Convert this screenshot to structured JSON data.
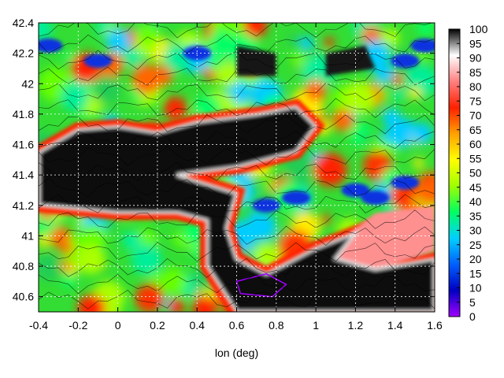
{
  "chart_data": {
    "type": "heatmap",
    "title": "",
    "xlabel": "lon (deg)",
    "ylabel": "",
    "xlim": [
      -0.4,
      1.6
    ],
    "ylim": [
      40.5,
      42.4
    ],
    "x_ticks": [
      "-0.4",
      "-0.2",
      "0",
      "0.2",
      "0.4",
      "0.6",
      "0.8",
      "1",
      "1.2",
      "1.4",
      "1.6"
    ],
    "y_ticks": [
      "40.6",
      "40.8",
      "41",
      "41.2",
      "41.4",
      "41.6",
      "41.8",
      "42",
      "42.2",
      "42.4"
    ],
    "colorbar": {
      "range": [
        0,
        100
      ],
      "ticks": [
        "0",
        "5",
        "10",
        "15",
        "20",
        "25",
        "30",
        "35",
        "40",
        "45",
        "50",
        "55",
        "60",
        "65",
        "70",
        "75",
        "80",
        "85",
        "90",
        "95",
        "100"
      ],
      "stops": [
        "#a000ff",
        "#0000c0",
        "#0060ff",
        "#00d0ff",
        "#00ff60",
        "#a0ff00",
        "#ffff00",
        "#ffa000",
        "#ff2000",
        "#ff8080",
        "#ffffff",
        "#000000"
      ]
    },
    "grid": true,
    "features": {
      "dark_plume": [
        [
          -0.4,
          41.55
        ],
        [
          -0.2,
          41.7
        ],
        [
          0.0,
          41.72
        ],
        [
          0.2,
          41.68
        ],
        [
          0.4,
          41.75
        ],
        [
          0.7,
          41.8
        ],
        [
          0.9,
          41.85
        ],
        [
          1.0,
          41.72
        ],
        [
          0.9,
          41.55
        ],
        [
          0.6,
          41.45
        ],
        [
          0.3,
          41.4
        ],
        [
          0.6,
          41.28
        ],
        [
          0.55,
          41.05
        ],
        [
          0.6,
          40.85
        ],
        [
          0.75,
          40.75
        ],
        [
          1.0,
          40.92
        ],
        [
          1.2,
          41.02
        ],
        [
          1.1,
          40.85
        ],
        [
          1.3,
          40.78
        ],
        [
          1.6,
          40.85
        ],
        [
          1.6,
          40.5
        ],
        [
          0.6,
          40.5
        ],
        [
          0.45,
          40.8
        ],
        [
          0.45,
          41.1
        ],
        [
          0.3,
          41.15
        ],
        [
          0.0,
          41.15
        ],
        [
          -0.4,
          41.2
        ]
      ],
      "dark_top_patch": [
        [
          0.6,
          42.25
        ],
        [
          0.8,
          42.2
        ],
        [
          0.8,
          42.05
        ],
        [
          0.6,
          42.05
        ]
      ],
      "dark_top_patch2": [
        [
          1.05,
          42.2
        ],
        [
          1.25,
          42.25
        ],
        [
          1.3,
          42.1
        ],
        [
          1.05,
          42.05
        ]
      ],
      "white_band": [
        [
          0.9,
          40.8
        ],
        [
          1.1,
          40.95
        ],
        [
          1.3,
          41.15
        ],
        [
          1.6,
          41.2
        ],
        [
          1.6,
          40.9
        ],
        [
          1.3,
          40.78
        ],
        [
          1.0,
          40.7
        ]
      ],
      "blue_patches": [
        [
          -0.35,
          42.25
        ],
        [
          -0.1,
          42.15
        ],
        [
          0.4,
          42.2
        ],
        [
          1.45,
          42.15
        ],
        [
          1.55,
          42.25
        ],
        [
          1.2,
          41.3
        ],
        [
          1.3,
          41.25
        ],
        [
          1.45,
          41.35
        ],
        [
          0.9,
          41.25
        ],
        [
          0.75,
          41.2
        ]
      ],
      "purple_region": [
        [
          0.6,
          40.7
        ],
        [
          0.75,
          40.75
        ],
        [
          0.85,
          40.68
        ],
        [
          0.78,
          40.6
        ],
        [
          0.62,
          40.62
        ]
      ]
    }
  }
}
